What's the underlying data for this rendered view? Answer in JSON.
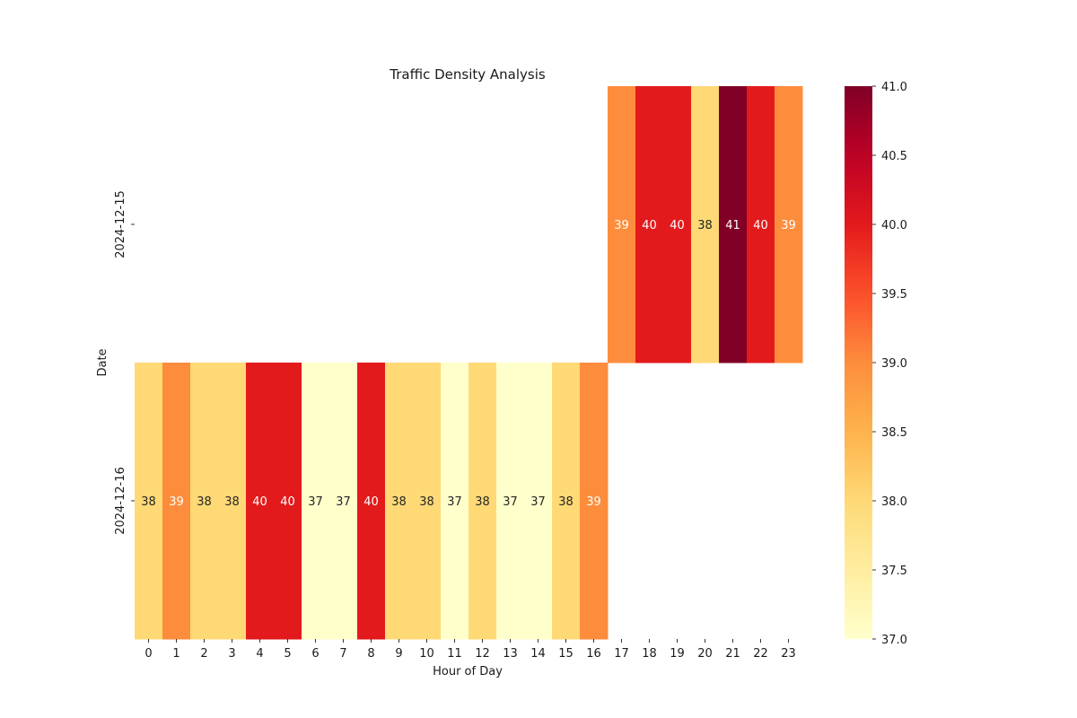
{
  "chart_data": {
    "type": "heatmap",
    "title": "Traffic Density Analysis",
    "xlabel": "Hour of Day",
    "ylabel": "Date",
    "x_categories": [
      "0",
      "1",
      "2",
      "3",
      "4",
      "5",
      "6",
      "7",
      "8",
      "9",
      "10",
      "11",
      "12",
      "13",
      "14",
      "15",
      "16",
      "17",
      "18",
      "19",
      "20",
      "21",
      "22",
      "23"
    ],
    "y_categories": [
      "2024-12-15",
      "2024-12-16"
    ],
    "values": [
      [
        null,
        null,
        null,
        null,
        null,
        null,
        null,
        null,
        null,
        null,
        null,
        null,
        null,
        null,
        null,
        null,
        null,
        39,
        40,
        40,
        38,
        41,
        40,
        39
      ],
      [
        38,
        39,
        38,
        38,
        40,
        40,
        37,
        37,
        40,
        38,
        38,
        37,
        38,
        37,
        37,
        38,
        39,
        null,
        null,
        null,
        null,
        null,
        null,
        null
      ]
    ],
    "colorscale": "YlOrRd",
    "colorbar": {
      "vmin": 37.0,
      "vmax": 41.0,
      "ticks": [
        "37.0",
        "37.5",
        "38.0",
        "38.5",
        "39.0",
        "39.5",
        "40.0",
        "40.5",
        "41.0"
      ]
    },
    "annotated": true,
    "grid": false
  }
}
